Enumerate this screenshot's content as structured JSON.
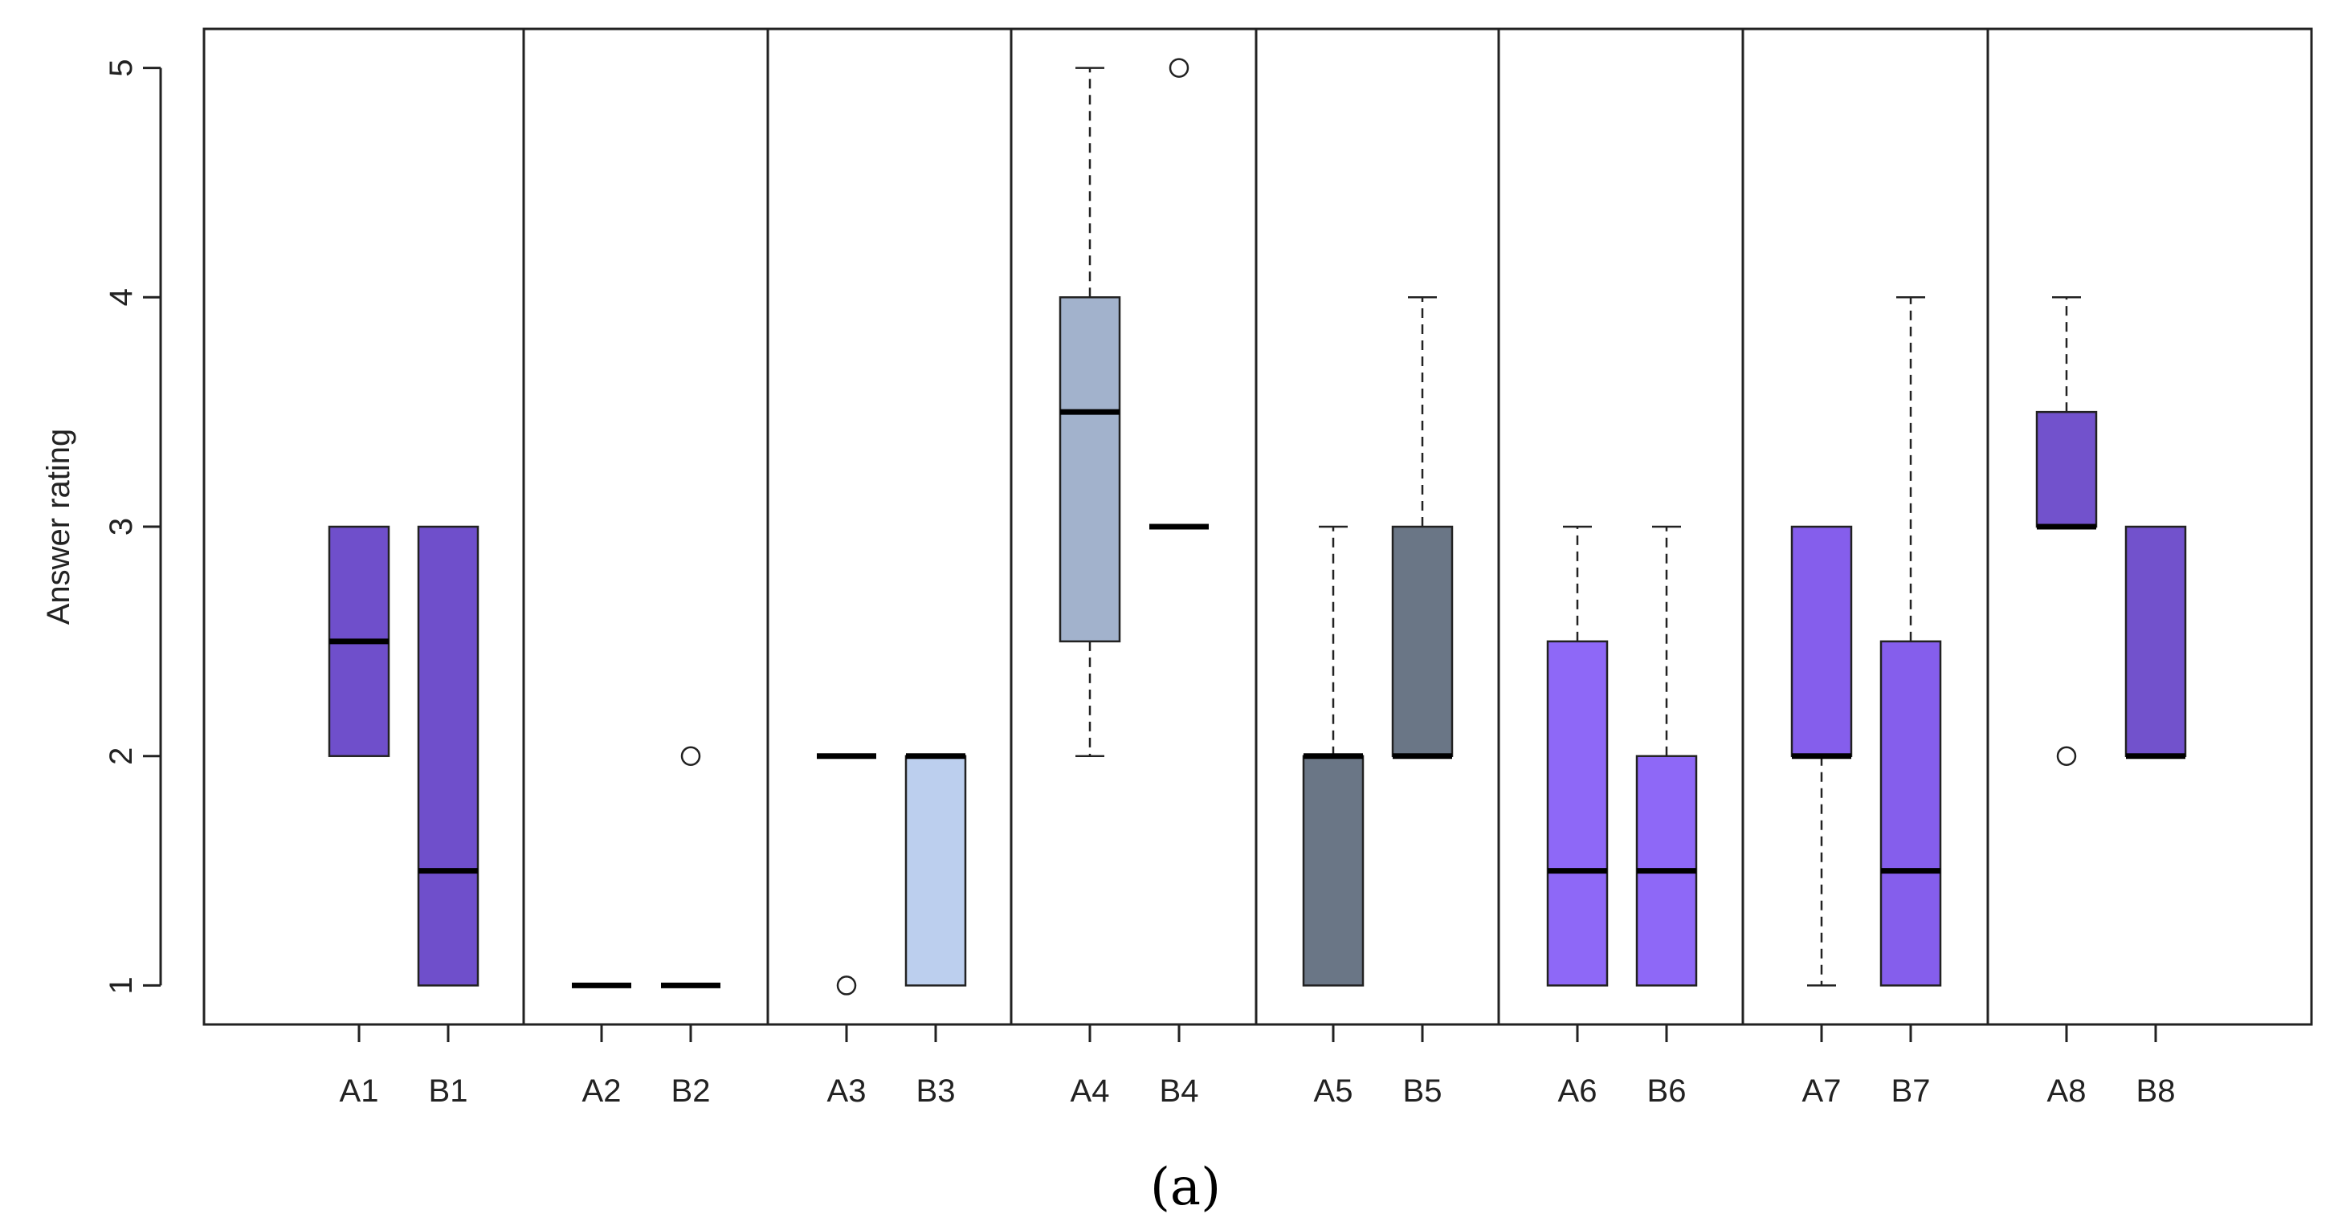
{
  "chart_data": {
    "type": "boxplot",
    "ylabel": "Answer rating",
    "xlabel": "",
    "ylim": [
      0.83,
      5.17
    ],
    "yticks": [
      "1",
      "2",
      "3",
      "4",
      "5"
    ],
    "caption": "(a)",
    "groups": [
      {
        "name": "A1",
        "lower_whisker": 2,
        "q1": 2,
        "median": 2.5,
        "q3": 3,
        "upper_whisker": 3,
        "outliers": [],
        "color": "#6F4FCB"
      },
      {
        "name": "B1",
        "lower_whisker": 1,
        "q1": 1,
        "median": 1.5,
        "q3": 3,
        "upper_whisker": 3,
        "outliers": [],
        "color": "#6F4FCB"
      },
      {
        "name": "A2",
        "lower_whisker": 1,
        "q1": 1,
        "median": 1,
        "q3": 1,
        "upper_whisker": 1,
        "outliers": [],
        "color": "#7B7BC8"
      },
      {
        "name": "B2",
        "lower_whisker": 1,
        "q1": 1,
        "median": 1,
        "q3": 1,
        "upper_whisker": 1,
        "outliers": [
          2
        ],
        "color": "#7B7BC8"
      },
      {
        "name": "A3",
        "lower_whisker": 2,
        "q1": 2,
        "median": 2,
        "q3": 2,
        "upper_whisker": 2,
        "outliers": [
          1
        ],
        "color": "#BCCFEE"
      },
      {
        "name": "B3",
        "lower_whisker": 1,
        "q1": 1,
        "median": 2,
        "q3": 2,
        "upper_whisker": 2,
        "outliers": [],
        "color": "#BCCFEE"
      },
      {
        "name": "A4",
        "lower_whisker": 2,
        "q1": 2.5,
        "median": 3.5,
        "q3": 4,
        "upper_whisker": 5,
        "outliers": [],
        "color": "#A2B2CC"
      },
      {
        "name": "B4",
        "lower_whisker": 3,
        "q1": 3,
        "median": 3,
        "q3": 3,
        "upper_whisker": 3,
        "outliers": [
          5
        ],
        "color": "#A2B2CC"
      },
      {
        "name": "A5",
        "lower_whisker": 1,
        "q1": 1,
        "median": 2,
        "q3": 2,
        "upper_whisker": 3,
        "outliers": [],
        "color": "#6A7686"
      },
      {
        "name": "B5",
        "lower_whisker": 2,
        "q1": 2,
        "median": 2,
        "q3": 3,
        "upper_whisker": 4,
        "outliers": [],
        "color": "#6A7686"
      },
      {
        "name": "A6",
        "lower_whisker": 1,
        "q1": 1,
        "median": 1.5,
        "q3": 2.5,
        "upper_whisker": 3,
        "outliers": [],
        "color": "#8E68F7"
      },
      {
        "name": "B6",
        "lower_whisker": 1,
        "q1": 1,
        "median": 1.5,
        "q3": 2,
        "upper_whisker": 3,
        "outliers": [],
        "color": "#8E68F7"
      },
      {
        "name": "A7",
        "lower_whisker": 1,
        "q1": 2,
        "median": 2,
        "q3": 3,
        "upper_whisker": 3,
        "outliers": [],
        "color": "#855EEC"
      },
      {
        "name": "B7",
        "lower_whisker": 1,
        "q1": 1,
        "median": 1.5,
        "q3": 2.5,
        "upper_whisker": 4,
        "outliers": [],
        "color": "#855EEC"
      },
      {
        "name": "A8",
        "lower_whisker": 3,
        "q1": 3,
        "median": 3,
        "q3": 3.5,
        "upper_whisker": 4,
        "outliers": [
          2
        ],
        "color": "#7252CC"
      },
      {
        "name": "B8",
        "lower_whisker": 2,
        "q1": 2,
        "median": 2,
        "q3": 3,
        "upper_whisker": 3,
        "outliers": [],
        "color": "#7252CC"
      }
    ]
  }
}
